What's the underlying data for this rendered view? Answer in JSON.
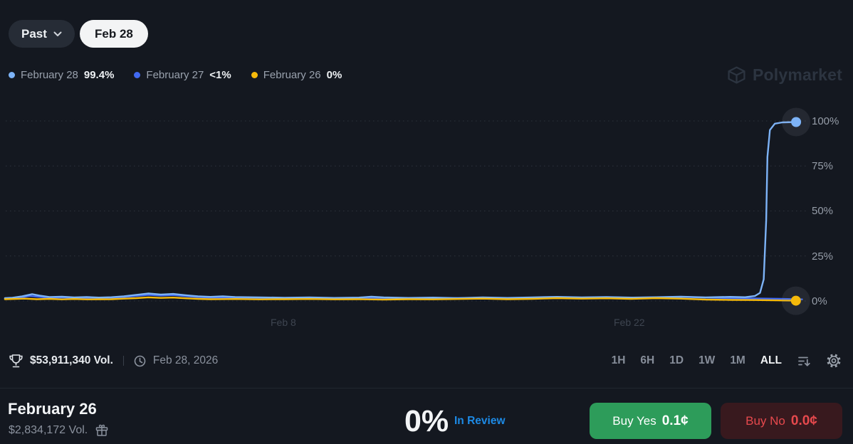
{
  "header": {
    "past_label": "Past",
    "date_pill": "Feb 28"
  },
  "watermark": {
    "name": "Polymarket"
  },
  "legend": {
    "items": [
      {
        "label": "February 28",
        "value": "99.4%",
        "color": "#7db3f7"
      },
      {
        "label": "February 27",
        "value": "<1%",
        "color": "#4169f1"
      },
      {
        "label": "February 26",
        "value": "0%",
        "color": "#f5b90a"
      }
    ]
  },
  "chart_data": {
    "type": "line",
    "title": "",
    "xlabel": "",
    "ylabel": "",
    "grid": "horizontal dotted",
    "legend_position": "top-left",
    "x_axis": {
      "tick_labels": [
        "Feb 8",
        "Feb 22"
      ],
      "tick_days": [
        7,
        21
      ],
      "unit": "days from Feb 1"
    },
    "y_axis": {
      "tick_labels": [
        "100%",
        "75%",
        "50%",
        "25%",
        "0%"
      ],
      "tick_values": [
        100,
        75,
        50,
        25,
        0
      ],
      "range": [
        0,
        100
      ]
    },
    "series": [
      {
        "id": "feb-27",
        "name": "February 27",
        "color": "#4169f1",
        "end_value": "<1%",
        "end_marker": false,
        "points": [
          [
            -4.3,
            1.2
          ],
          [
            -3.8,
            1.6
          ],
          [
            -3.3,
            2.8
          ],
          [
            -3.0,
            2.4
          ],
          [
            -2.5,
            1.8
          ],
          [
            -2.0,
            2.0
          ],
          [
            -1.5,
            1.7
          ],
          [
            -1.0,
            1.9
          ],
          [
            -0.5,
            1.6
          ],
          [
            0,
            1.8
          ],
          [
            0.5,
            2.2
          ],
          [
            1.0,
            2.8
          ],
          [
            1.5,
            3.4
          ],
          [
            2.0,
            3.0
          ],
          [
            2.5,
            3.3
          ],
          [
            3.0,
            2.7
          ],
          [
            3.5,
            2.2
          ],
          [
            4.0,
            1.9
          ],
          [
            5.0,
            1.8
          ],
          [
            6.0,
            1.6
          ],
          [
            7.0,
            1.5
          ],
          [
            8.0,
            1.7
          ],
          [
            9.0,
            1.4
          ],
          [
            10.0,
            1.6
          ],
          [
            11.0,
            1.4
          ],
          [
            12.0,
            1.5
          ],
          [
            13.0,
            1.4
          ],
          [
            14.0,
            1.6
          ],
          [
            15.0,
            1.8
          ],
          [
            16.0,
            1.5
          ],
          [
            17.0,
            1.7
          ],
          [
            18.0,
            2.1
          ],
          [
            19.0,
            1.9
          ],
          [
            20.0,
            2.1
          ],
          [
            21.0,
            1.8
          ],
          [
            22.0,
            2.0
          ],
          [
            23.0,
            2.3
          ],
          [
            24.0,
            1.9
          ],
          [
            25.0,
            1.6
          ],
          [
            26.0,
            1.4
          ],
          [
            27.0,
            1.2
          ],
          [
            27.9,
            0.9
          ]
        ]
      },
      {
        "id": "feb-28",
        "name": "February 28",
        "color": "#7db3f7",
        "end_value": "99.4%",
        "end_marker": true,
        "points": [
          [
            -4.3,
            1.6
          ],
          [
            -4.0,
            1.8
          ],
          [
            -3.6,
            2.6
          ],
          [
            -3.2,
            3.8
          ],
          [
            -2.9,
            3.0
          ],
          [
            -2.5,
            2.2
          ],
          [
            -2.0,
            2.4
          ],
          [
            -1.5,
            2.0
          ],
          [
            -1.0,
            2.2
          ],
          [
            -0.5,
            1.9
          ],
          [
            0,
            2.1
          ],
          [
            0.5,
            2.6
          ],
          [
            1.0,
            3.4
          ],
          [
            1.5,
            4.2
          ],
          [
            2.0,
            3.6
          ],
          [
            2.5,
            3.9
          ],
          [
            3.0,
            3.2
          ],
          [
            3.5,
            2.6
          ],
          [
            4.0,
            2.3
          ],
          [
            4.5,
            2.6
          ],
          [
            5.0,
            2.2
          ],
          [
            6.0,
            2.0
          ],
          [
            7.0,
            1.8
          ],
          [
            8.0,
            2.0
          ],
          [
            9.0,
            1.7
          ],
          [
            10.0,
            1.9
          ],
          [
            10.5,
            2.4
          ],
          [
            11.0,
            2.0
          ],
          [
            12.0,
            1.7
          ],
          [
            13.0,
            1.9
          ],
          [
            14.0,
            1.6
          ],
          [
            15.0,
            2.0
          ],
          [
            16.0,
            1.7
          ],
          [
            17.0,
            2.0
          ],
          [
            18.0,
            2.3
          ],
          [
            19.0,
            2.0
          ],
          [
            20.0,
            2.2
          ],
          [
            21.0,
            1.9
          ],
          [
            22.0,
            2.1
          ],
          [
            23.0,
            2.4
          ],
          [
            24.0,
            2.0
          ],
          [
            25.0,
            2.3
          ],
          [
            25.6,
            2.1
          ],
          [
            26.0,
            2.8
          ],
          [
            26.2,
            4.5
          ],
          [
            26.35,
            12
          ],
          [
            26.45,
            45
          ],
          [
            26.5,
            80
          ],
          [
            26.6,
            95
          ],
          [
            26.8,
            98.5
          ],
          [
            27.1,
            99.2
          ],
          [
            27.66,
            99.4
          ]
        ]
      },
      {
        "id": "feb-26",
        "name": "February 26",
        "color": "#f5b90a",
        "end_value": "0%",
        "end_marker": true,
        "points": [
          [
            -4.3,
            1.0
          ],
          [
            -3.5,
            1.3
          ],
          [
            -3.0,
            1.0
          ],
          [
            -2.5,
            1.2
          ],
          [
            -2.0,
            0.9
          ],
          [
            -1.5,
            1.1
          ],
          [
            -1.0,
            0.9
          ],
          [
            0,
            1.0
          ],
          [
            0.5,
            1.3
          ],
          [
            1.0,
            1.6
          ],
          [
            1.5,
            2.0
          ],
          [
            2.0,
            1.7
          ],
          [
            2.5,
            1.9
          ],
          [
            3.0,
            1.5
          ],
          [
            3.5,
            1.2
          ],
          [
            4.0,
            1.0
          ],
          [
            5.0,
            1.1
          ],
          [
            6.0,
            0.9
          ],
          [
            7.0,
            1.0
          ],
          [
            8.0,
            1.1
          ],
          [
            9.0,
            0.9
          ],
          [
            10.0,
            1.0
          ],
          [
            11.0,
            0.8
          ],
          [
            12.0,
            1.0
          ],
          [
            13.0,
            0.9
          ],
          [
            14.0,
            1.1
          ],
          [
            15.0,
            1.3
          ],
          [
            16.0,
            1.0
          ],
          [
            17.0,
            1.2
          ],
          [
            18.0,
            1.6
          ],
          [
            19.0,
            1.3
          ],
          [
            20.0,
            1.5
          ],
          [
            21.0,
            1.2
          ],
          [
            22.0,
            1.6
          ],
          [
            23.0,
            1.3
          ],
          [
            24.0,
            0.8
          ],
          [
            25.0,
            0.6
          ],
          [
            26.0,
            0.5
          ],
          [
            27.0,
            0.3
          ],
          [
            27.65,
            0.15
          ]
        ]
      }
    ]
  },
  "footer": {
    "volume": "$53,911,340 Vol.",
    "date": "Feb 28, 2026",
    "ranges": [
      "1H",
      "6H",
      "1D",
      "1W",
      "1M",
      "ALL"
    ],
    "active_range": "ALL"
  },
  "outcome": {
    "title": "February 26",
    "volume": "$2,834,172 Vol.",
    "chance": "0%",
    "status": "In Review",
    "status_color": "#1d8ae5",
    "buy_yes": {
      "label": "Buy Yes",
      "price": "0.1¢",
      "color": "#2d9c5a"
    },
    "buy_no": {
      "label": "Buy No",
      "price": "0.0¢",
      "color": "#e6494d"
    }
  }
}
